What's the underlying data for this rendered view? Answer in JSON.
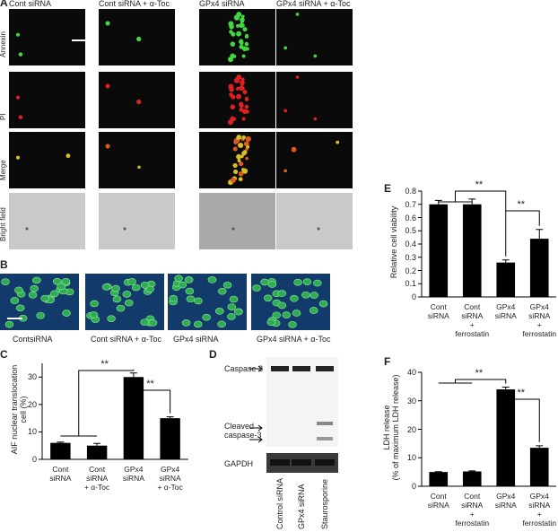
{
  "panel_labels": [
    "A",
    "B",
    "C",
    "D",
    "E",
    "F"
  ],
  "panel_a": {
    "columns": [
      "Cont siRNA",
      "Cont siRNA + α-Toc",
      "GPx4 siRNA",
      "GPx4 siRNA + α-Toc"
    ],
    "rows": [
      "Annexin",
      "PI",
      "Merge",
      "Bright field"
    ]
  },
  "panel_b": {
    "captions": [
      "ContsiRNA",
      "Cont siRNA + α-Toc",
      "GPx4 siRNA",
      "GPx4 siRNA + α-Toc"
    ]
  },
  "panel_d": {
    "bands": [
      "Caspase 3",
      "Cleaved\ncaspase-3",
      "GAPDH"
    ],
    "lanes": [
      "Control siRNA",
      "GPx4 siRNA",
      "Staurosporine"
    ]
  },
  "chart_data": [
    {
      "type": "bar",
      "y_label": "AIF nuclear translocation cell (%)",
      "categories": [
        "Cont\nsiRNA",
        "Cont\nsiRNA\n+ α-Toc",
        "GPx4\nsiRNA",
        "GPx4\nsiRNA\n+ α-Toc"
      ],
      "values": [
        6,
        5,
        30,
        15
      ],
      "errors": [
        0.3,
        0.8,
        1.5,
        0.5
      ],
      "color": "#000000",
      "ylim": [
        0,
        35
      ],
      "yticks": [
        0,
        10,
        20,
        30
      ],
      "significance": [
        "**",
        "**"
      ]
    },
    {
      "type": "bar",
      "y_label": "Relative cell viability",
      "categories": [
        "Cont\nsiRNA",
        "Cont\nsiRNA\n+\nferrostatin",
        "GPx4\nsiRNA",
        "GPx4\nsiRNA\n+\nferrostatin"
      ],
      "values": [
        0.7,
        0.7,
        0.26,
        0.44
      ],
      "errors": [
        0.03,
        0.04,
        0.02,
        0.07
      ],
      "color": "#000000",
      "ylim": [
        0,
        0.8
      ],
      "yticks": [
        0,
        0.1,
        0.2,
        0.3,
        0.4,
        0.5,
        0.6,
        0.7,
        0.8
      ],
      "significance": [
        "**",
        "**"
      ]
    },
    {
      "type": "bar",
      "y_label": "LDH release\n(% of maximum LDH release)",
      "categories": [
        "Cont\nsiRNA",
        "Cont\nsiRNA\n+\nferrostatin",
        "GPx4\nsiRNA",
        "GPx4\nsiRNA\n+\nferrostatin"
      ],
      "values": [
        5,
        5.2,
        34,
        13.5
      ],
      "errors": [
        0.1,
        0.2,
        0.8,
        0.7
      ],
      "color": "#000000",
      "ylim": [
        0,
        40
      ],
      "yticks": [
        0,
        10,
        20,
        30,
        40
      ],
      "significance": [
        "**",
        "**"
      ]
    }
  ]
}
